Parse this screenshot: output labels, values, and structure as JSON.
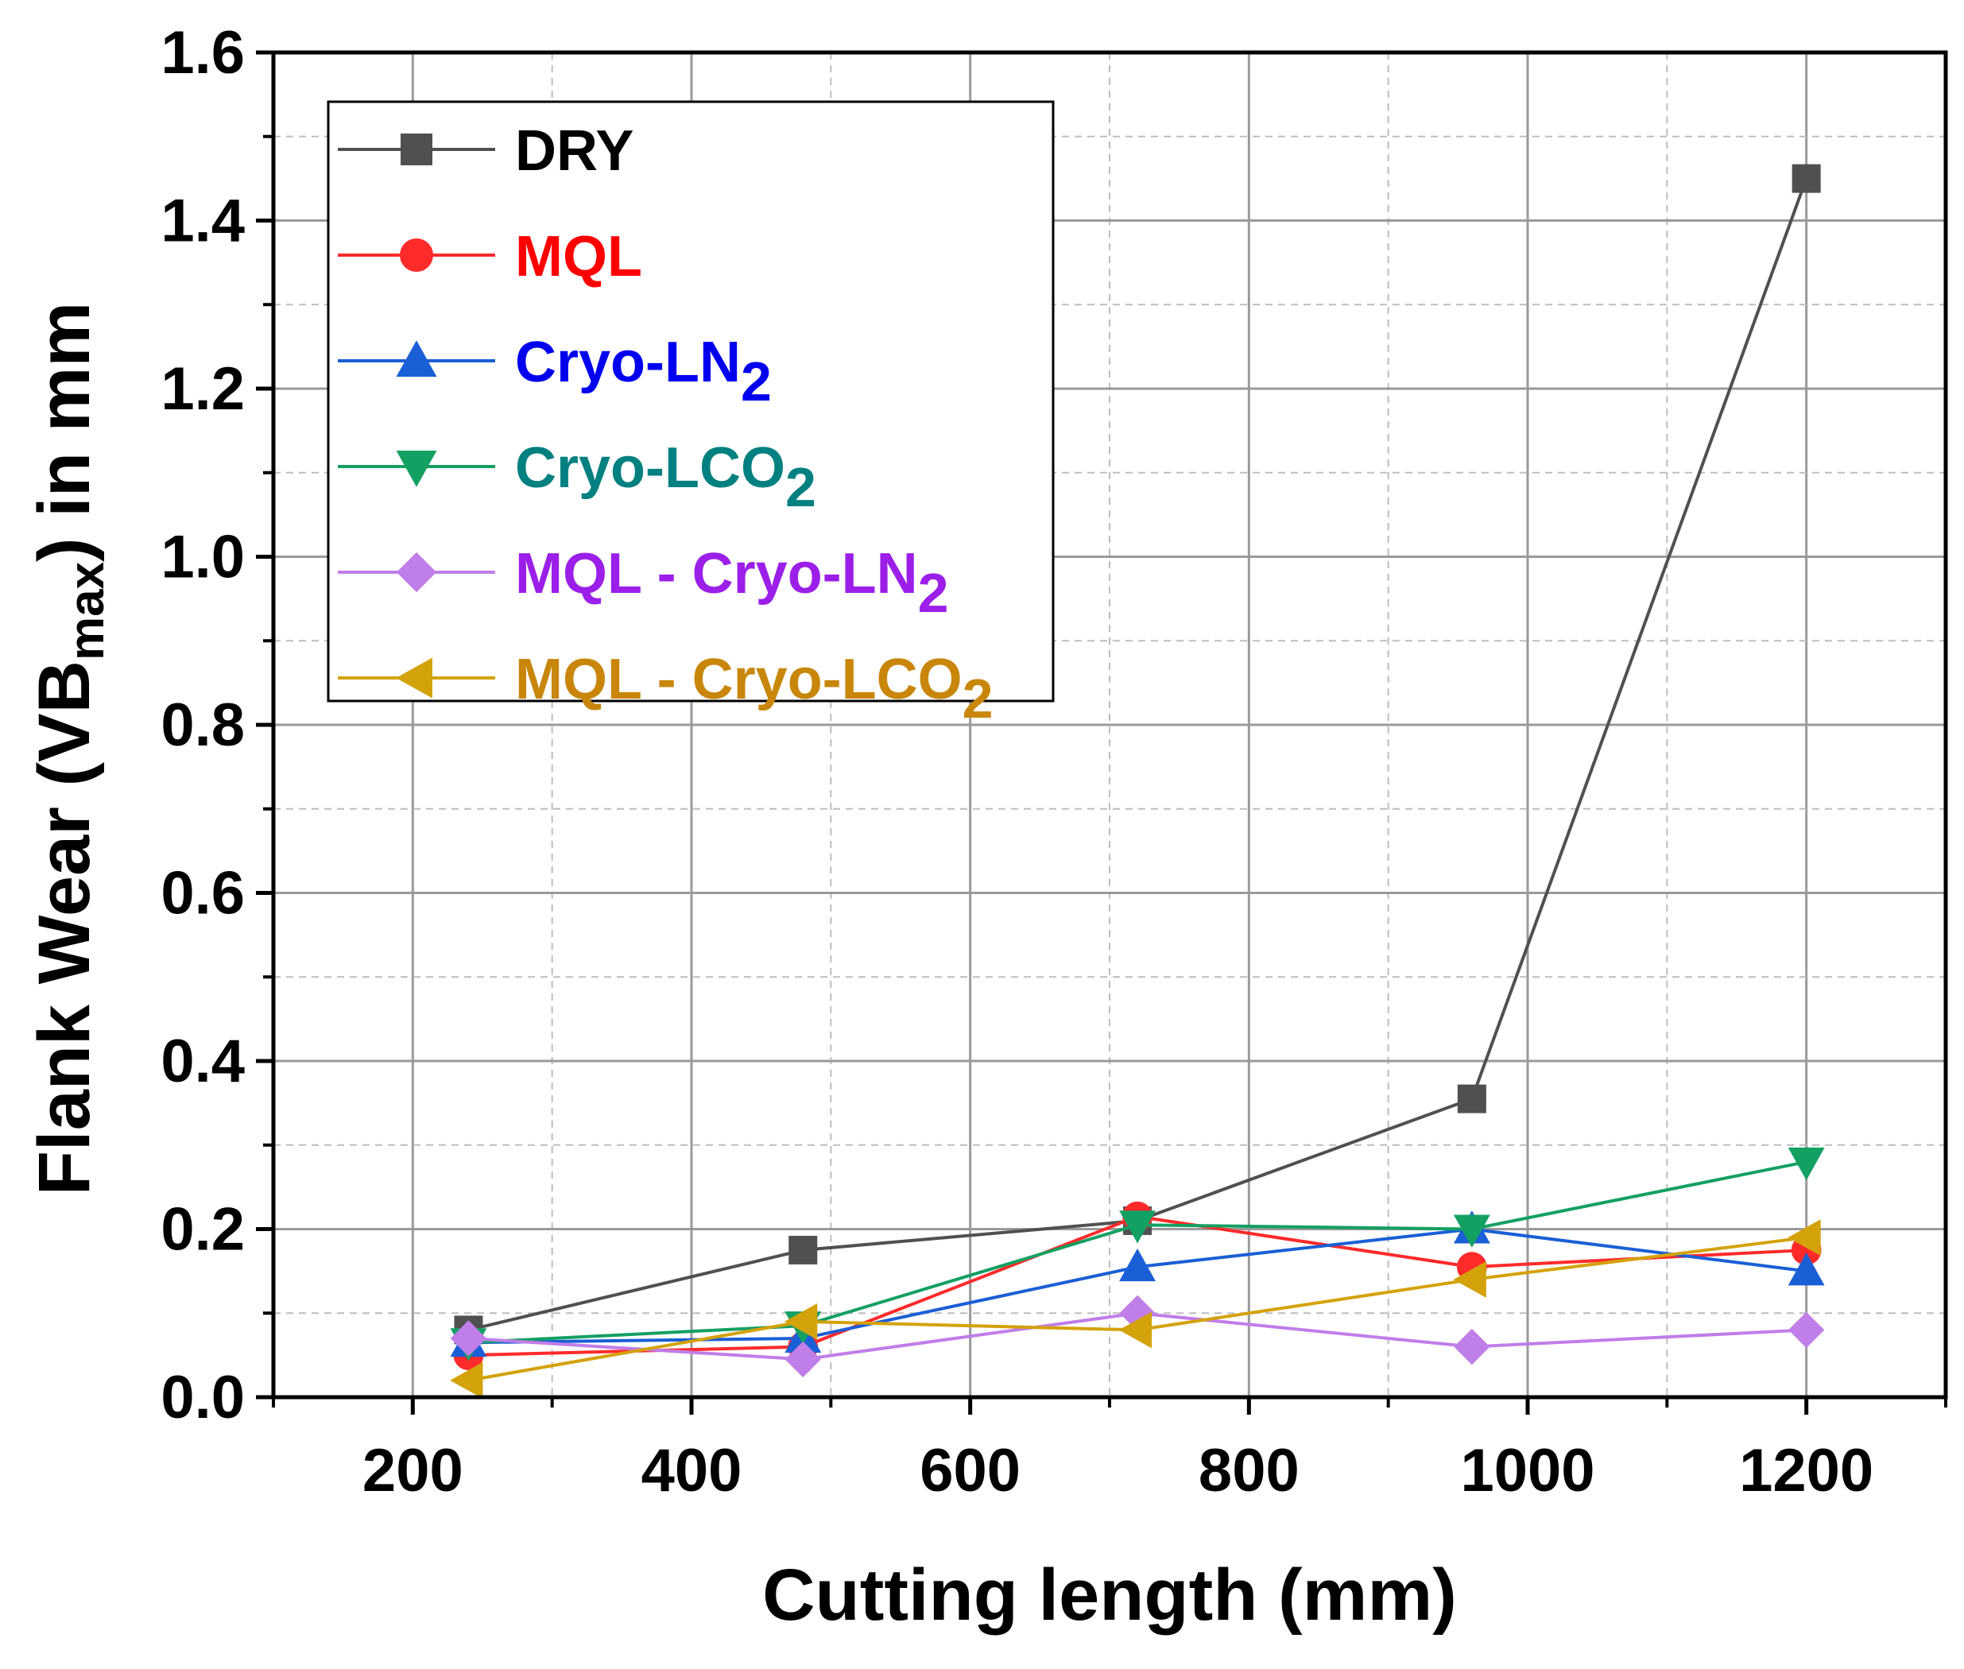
{
  "chart_data": {
    "type": "line",
    "title": "",
    "xlabel": "Cutting length (mm)",
    "ylabel": {
      "main": "Flank Wear (VB",
      "subscript": "max",
      "suffix": ") in mm"
    },
    "xlim": [
      100,
      1300
    ],
    "ylim": [
      0.0,
      1.6
    ],
    "x_ticks": [
      200,
      400,
      600,
      800,
      1000,
      1200
    ],
    "x_tick_labels": [
      "200",
      "400",
      "600",
      "800",
      "1000",
      "1200"
    ],
    "y_ticks": [
      0.0,
      0.2,
      0.4,
      0.6,
      0.8,
      1.0,
      1.2,
      1.4,
      1.6
    ],
    "y_tick_labels": [
      "0.0",
      "0.2",
      "0.4",
      "0.6",
      "0.8",
      "1.0",
      "1.2",
      "1.4",
      "1.6"
    ],
    "x_minor_ticks": [
      100,
      300,
      500,
      700,
      900,
      1100,
      1300
    ],
    "y_minor_ticks": [
      0.1,
      0.3,
      0.5,
      0.7,
      0.9,
      1.1,
      1.3,
      1.5
    ],
    "grid": true,
    "legend_position": "top-left",
    "x": [
      240,
      480,
      720,
      960,
      1200
    ],
    "series": [
      {
        "name": "DRY",
        "label_main": "DRY",
        "label_sub": "",
        "color": "#505050",
        "marker": "square",
        "values": [
          0.08,
          0.175,
          0.21,
          0.355,
          1.45
        ]
      },
      {
        "name": "MQL",
        "label_main": "MQL",
        "label_sub": "",
        "color": "#ff2a2a",
        "marker": "circle",
        "values": [
          0.05,
          0.06,
          0.215,
          0.155,
          0.175
        ]
      },
      {
        "name": "Cryo-LN2",
        "label_main": "Cryo-LN",
        "label_sub": "2",
        "color": "#1a5fd6",
        "marker": "triangle-up",
        "values": [
          0.065,
          0.07,
          0.155,
          0.2,
          0.15
        ]
      },
      {
        "name": "Cryo-LCO2",
        "label_main": "Cryo-LCO",
        "label_sub": "2",
        "color": "#13a063",
        "marker": "triangle-down",
        "values": [
          0.065,
          0.085,
          0.205,
          0.2,
          0.28
        ]
      },
      {
        "name": "MQL - Cryo-LN2",
        "label_main": "MQL - Cryo-LN",
        "label_sub": "2",
        "color": "#c07ee8",
        "marker": "diamond",
        "values": [
          0.07,
          0.045,
          0.1,
          0.06,
          0.08
        ]
      },
      {
        "name": "MQL - Cryo-LCO2",
        "label_main": "MQL - Cryo-LCO",
        "label_sub": "2",
        "color": "#d4a20a",
        "marker": "triangle-left",
        "values": [
          0.02,
          0.09,
          0.08,
          0.14,
          0.19
        ]
      }
    ],
    "legend_text_colors": [
      "#000000",
      "#ff0000",
      "#0000ee",
      "#008080",
      "#9b1fe8",
      "#c8860a"
    ]
  }
}
